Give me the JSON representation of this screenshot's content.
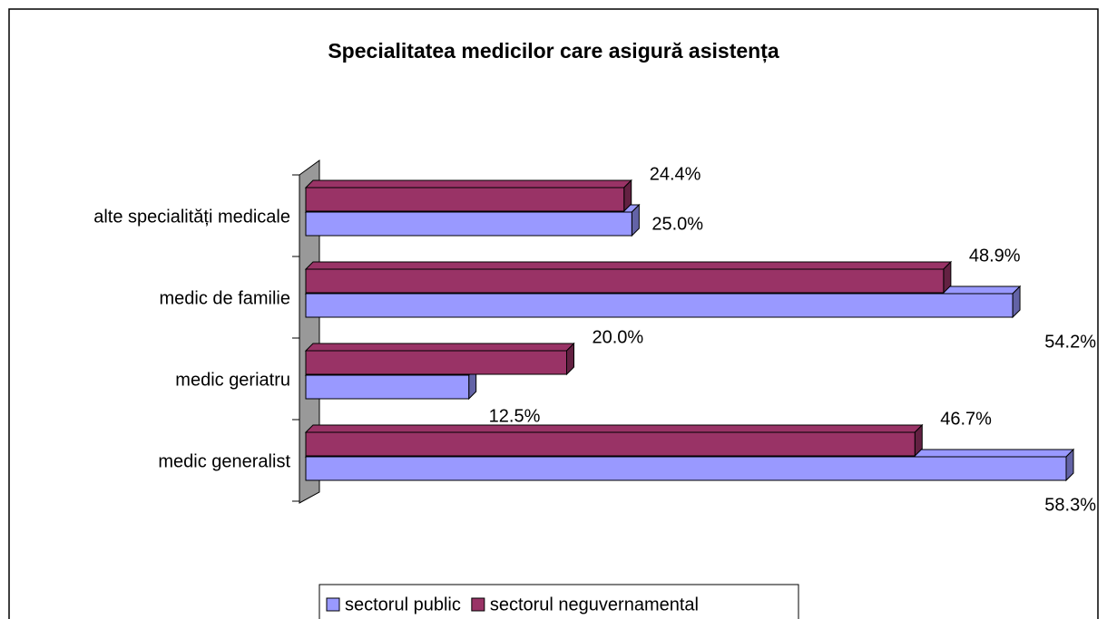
{
  "chart_data": {
    "type": "bar",
    "orientation": "horizontal",
    "title": "Specialitatea medicilor care asigură asistența",
    "categories": [
      "alte specialități medicale",
      "medic de familie",
      "medic geriatru",
      "medic generalist"
    ],
    "series": [
      {
        "name": "sectorul public",
        "color": "#9999ff",
        "values": [
          25,
          54.2,
          12.5,
          58.3
        ],
        "value_labels": [
          "25.0%",
          "54.2%",
          "12.5%",
          "58.3%"
        ]
      },
      {
        "name": "sectorul neguvernamental",
        "color": "#993366",
        "values": [
          24.4,
          48.9,
          20,
          46.7
        ],
        "value_labels": [
          "24.4%",
          "48.9%",
          "20.0%",
          "46.7%"
        ]
      }
    ],
    "legend": "bottom"
  }
}
